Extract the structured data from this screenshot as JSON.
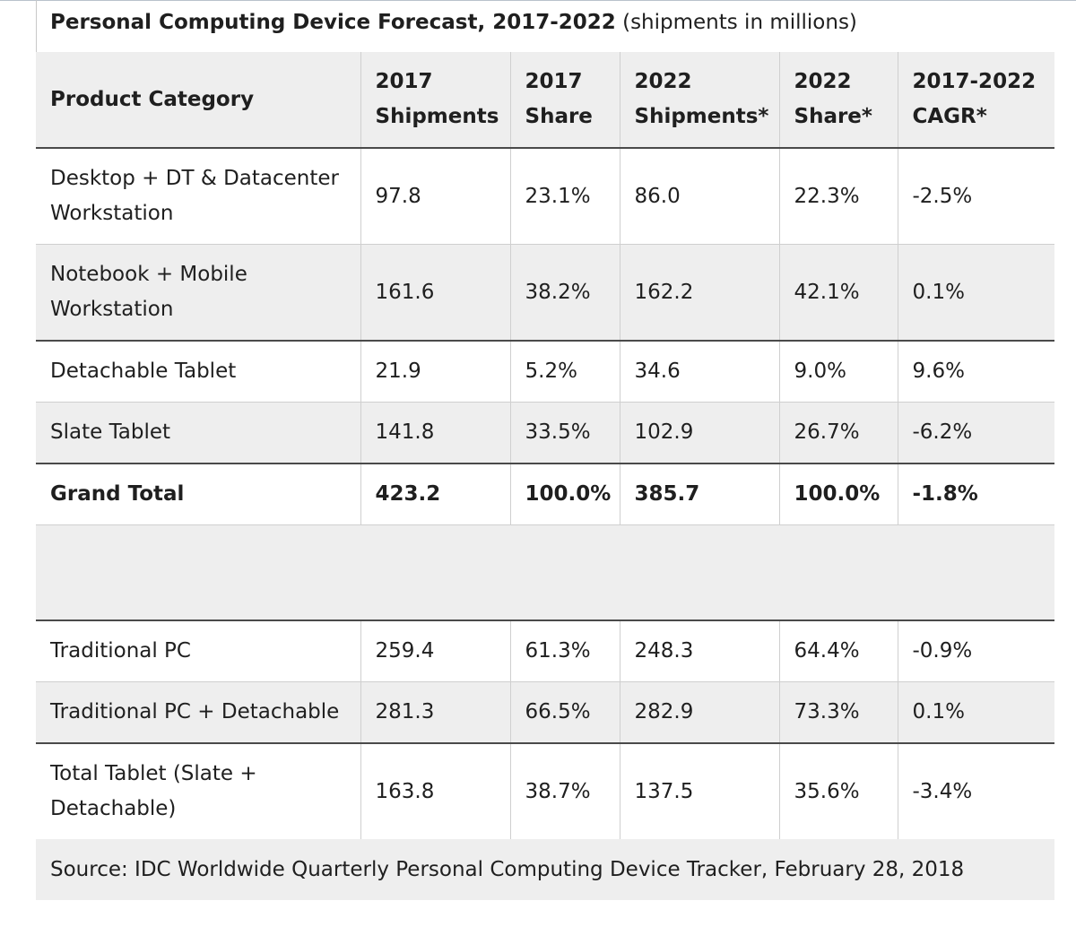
{
  "caption": {
    "title": "Personal Computing Device Forecast, 2017-2022",
    "subtitle": "(shipments in millions)"
  },
  "chart_data": {
    "type": "table",
    "title": "Personal Computing Device Forecast, 2017-2022",
    "subtitle": "(shipments in millions)",
    "columns": [
      "Product Category",
      "2017 Shipments",
      "2017 Share",
      "2022 Shipments*",
      "2022 Share*",
      "2017-2022 CAGR*"
    ],
    "rows": [
      [
        "Desktop + DT & Datacenter Workstation",
        "97.8",
        "23.1%",
        "86.0",
        "22.3%",
        "-2.5%"
      ],
      [
        "Notebook + Mobile Workstation",
        "161.6",
        "38.2%",
        "162.2",
        "42.1%",
        "0.1%"
      ],
      [
        "Detachable Tablet",
        "21.9",
        "5.2%",
        "34.6",
        "9.0%",
        "9.6%"
      ],
      [
        "Slate Tablet",
        "141.8",
        "33.5%",
        "102.9",
        "26.7%",
        "-6.2%"
      ],
      [
        "Grand Total",
        "423.2",
        "100.0%",
        "385.7",
        "100.0%",
        "-1.8%"
      ],
      [
        "Traditional PC",
        "259.4",
        "61.3%",
        "248.3",
        "64.4%",
        "-0.9%"
      ],
      [
        "Traditional PC + Detachable",
        "281.3",
        "66.5%",
        "282.9",
        "73.3%",
        "0.1%"
      ],
      [
        "Total Tablet (Slate + Detachable)",
        "163.8",
        "38.7%",
        "137.5",
        "35.6%",
        "-3.4%"
      ]
    ],
    "source": "Source: IDC Worldwide Quarterly Personal Computing Device Tracker, February 28, 2018"
  }
}
